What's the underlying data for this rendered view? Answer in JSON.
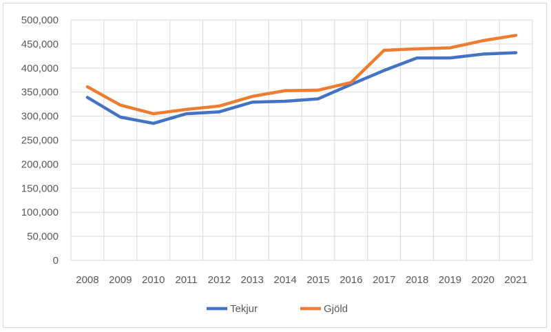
{
  "chart_data": {
    "type": "line",
    "title": "",
    "xlabel": "",
    "ylabel": "",
    "categories": [
      "2008",
      "2009",
      "2010",
      "2011",
      "2012",
      "2013",
      "2014",
      "2015",
      "2016",
      "2017",
      "2018",
      "2019",
      "2020",
      "2021"
    ],
    "ylim": [
      0,
      500000
    ],
    "yticks": [
      0,
      50000,
      100000,
      150000,
      200000,
      250000,
      300000,
      350000,
      400000,
      450000,
      500000
    ],
    "ytick_labels": [
      "0",
      "50,000",
      "100,000",
      "150,000",
      "200,000",
      "250,000",
      "300,000",
      "350,000",
      "400,000",
      "450,000",
      "500,000"
    ],
    "grid": true,
    "legend_position": "bottom",
    "series": [
      {
        "name": "Tekjur",
        "color": "#4472c4",
        "values": [
          339000,
          298000,
          285000,
          305000,
          309000,
          329000,
          331000,
          336000,
          366000,
          395000,
          421000,
          421000,
          429000,
          432000
        ]
      },
      {
        "name": "Gjöld",
        "color": "#ed7d31",
        "values": [
          361000,
          323000,
          305000,
          314000,
          321000,
          341000,
          353000,
          354000,
          370000,
          437000,
          440000,
          442000,
          457000,
          468000
        ]
      }
    ]
  }
}
